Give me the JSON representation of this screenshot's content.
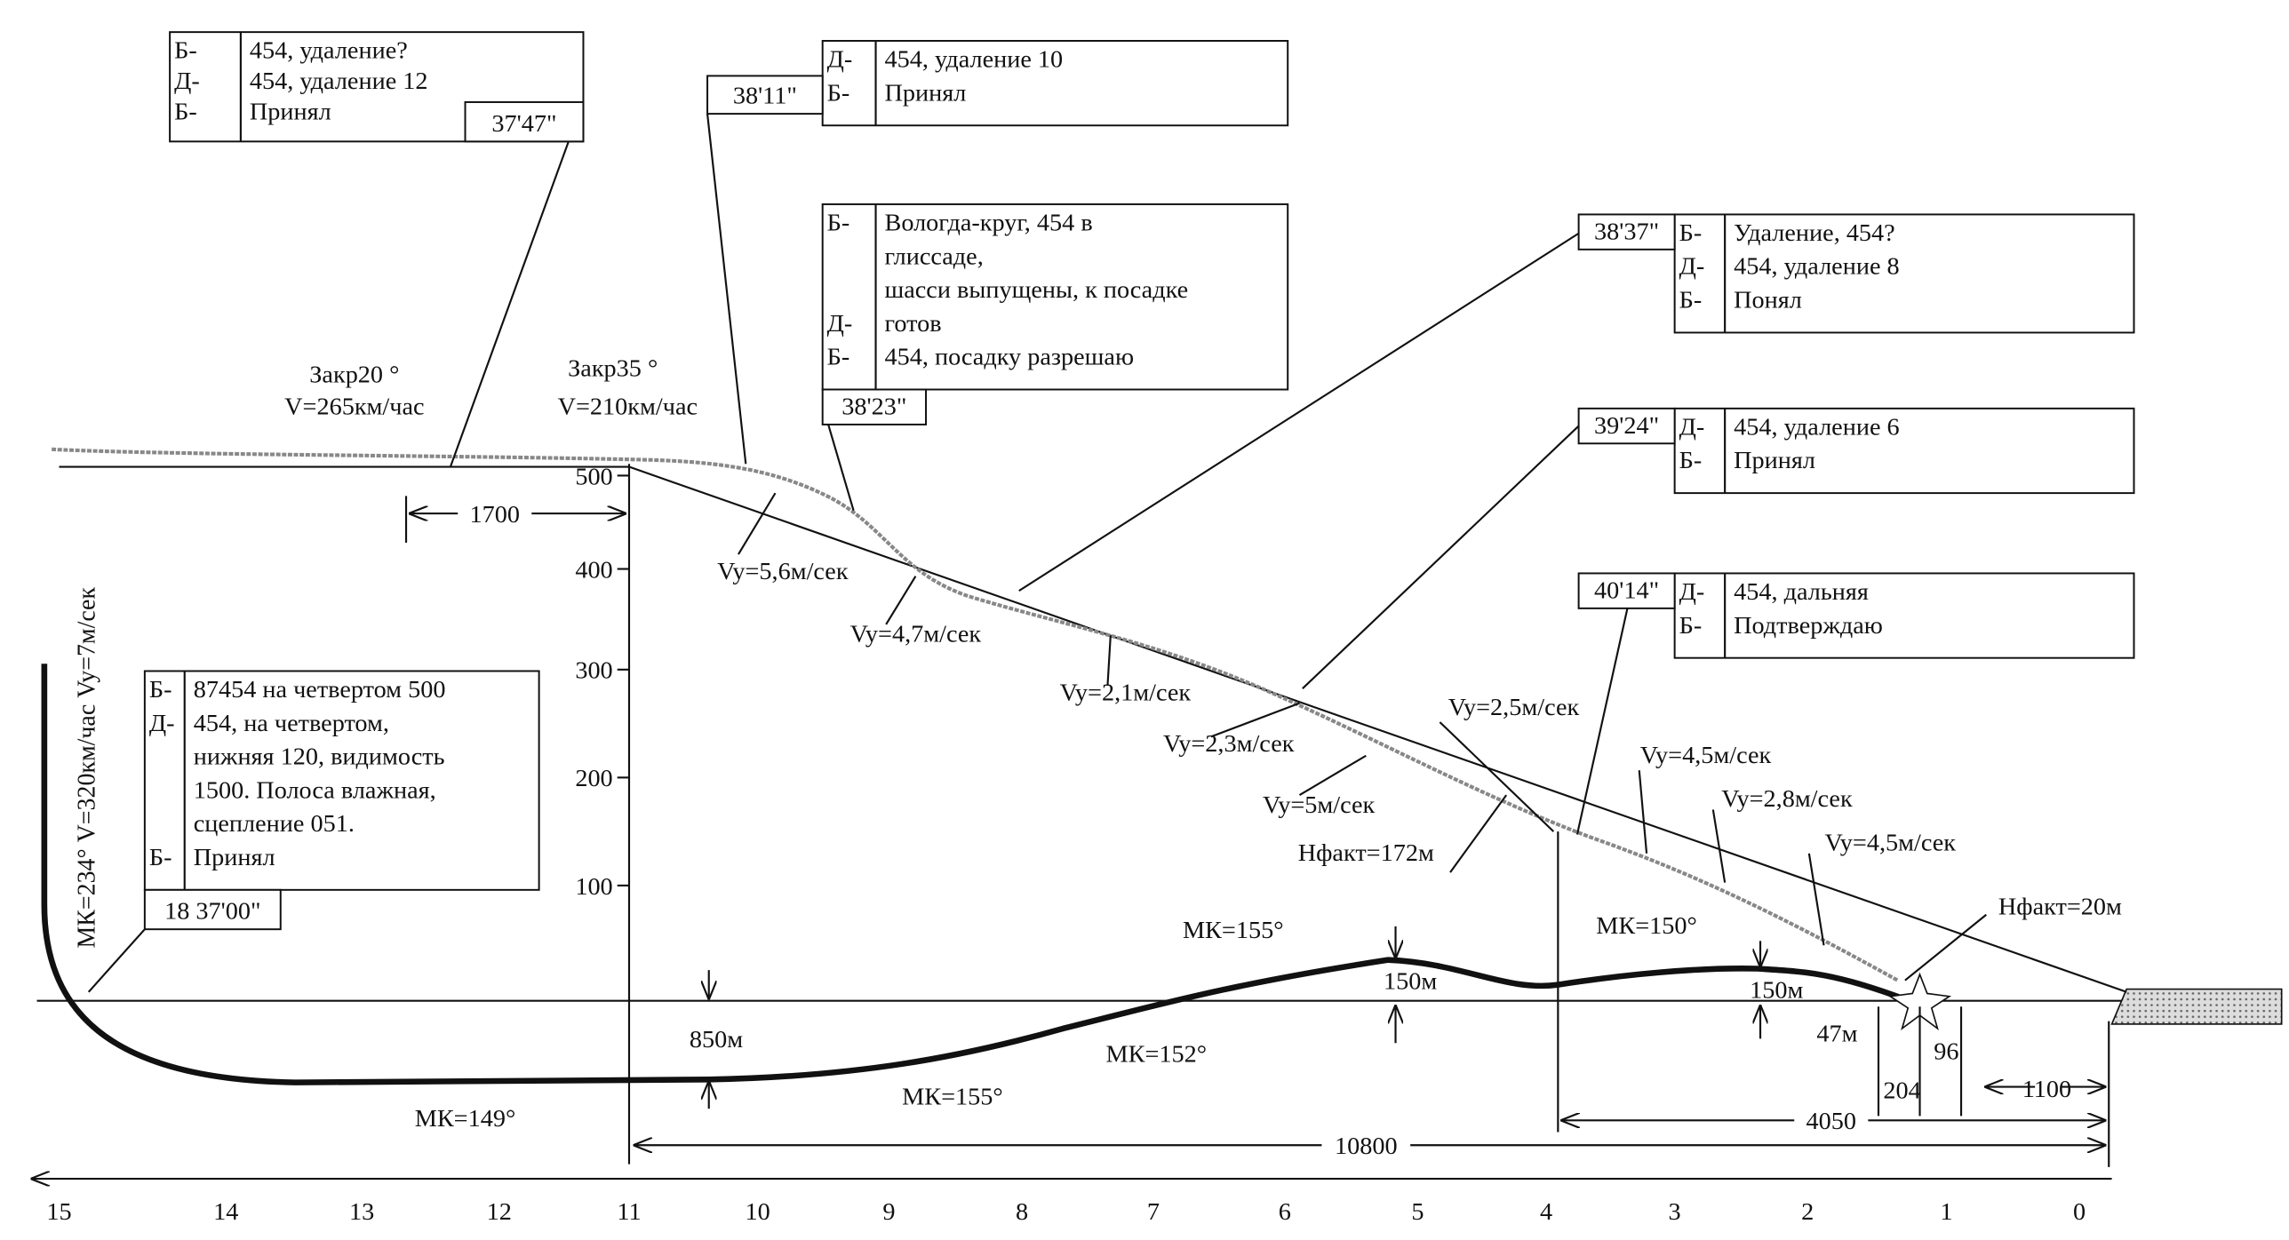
{
  "boxes": [
    {
      "time": "37'47\"",
      "rows": [
        {
          "speaker": "Б-",
          "lines": [
            "454, удаление?"
          ]
        },
        {
          "speaker": "Д-",
          "lines": [
            "454, удаление 12"
          ]
        },
        {
          "speaker": "Б-",
          "lines": [
            "Принял"
          ]
        }
      ]
    },
    {
      "time": "38'11\"",
      "rows": [
        {
          "speaker": "Д-",
          "lines": [
            "454, удаление 10"
          ]
        },
        {
          "speaker": "Б-",
          "lines": [
            "Принял"
          ]
        }
      ]
    },
    {
      "time": "38'23\"",
      "rows": [
        {
          "speaker": "Б-",
          "lines": [
            "Вологда-круг, 454 в",
            "глиссаде,",
            "шасси выпущены, к посадке"
          ]
        },
        {
          "speaker": "Д-",
          "lines": [
            "готов"
          ]
        },
        {
          "speaker": "Б-",
          "lines": [
            "454, посадку разрешаю"
          ]
        }
      ]
    },
    {
      "time": "38'37\"",
      "rows": [
        {
          "speaker": "Б-",
          "lines": [
            "Удаление, 454?"
          ]
        },
        {
          "speaker": "Д-",
          "lines": [
            "454, удаление 8"
          ]
        },
        {
          "speaker": "Б-",
          "lines": [
            "Понял"
          ]
        }
      ]
    },
    {
      "time": "39'24\"",
      "rows": [
        {
          "speaker": "Д-",
          "lines": [
            "454, удаление 6"
          ]
        },
        {
          "speaker": "Б-",
          "lines": [
            "Принял"
          ]
        }
      ]
    },
    {
      "time": "40'14\"",
      "rows": [
        {
          "speaker": "Д-",
          "lines": [
            "454, дальняя"
          ]
        },
        {
          "speaker": "Б-",
          "lines": [
            "Подтверждаю"
          ]
        }
      ]
    },
    {
      "time": "18 37'00\"",
      "rows": [
        {
          "speaker": "Б-",
          "lines": [
            "87454 на четвертом 500"
          ]
        },
        {
          "speaker": "Д-",
          "lines": [
            "454, на четвертом,",
            "нижняя 120, видимость",
            "1500. Полоса влажная,",
            "сцепление 051."
          ]
        },
        {
          "speaker": "Б-",
          "lines": [
            "Принял"
          ]
        }
      ]
    }
  ],
  "annotations": [
    "Закр20 °",
    "V=265км/час",
    "Закр35 °",
    "V=210км/час",
    "Vy=5,6м/сек",
    "Vy=4,7м/сек",
    "Vy=2,1м/сек",
    "Vy=2,3м/сек",
    "Vy=5м/сек",
    "Нфакт=172м",
    "Vy=2,5м/сек",
    "Vy=4,5м/сек",
    "Vy=2,8м/сек",
    "Vy=4,5м/сек",
    "Нфакт=20м",
    "МК=155°",
    "МК=150°",
    "МК=152°",
    "МК=155°",
    "МК=149°",
    "1700",
    "850м",
    "150м",
    "150м",
    "47м",
    "96",
    "204",
    "1100",
    "4050",
    "10800",
    "МК=234° V=320км/час Vy=7м/сек"
  ],
  "altitude_ticks": [
    500,
    400,
    300,
    200,
    100
  ],
  "distance_ticks": [
    15,
    14,
    13,
    12,
    11,
    10,
    9,
    8,
    7,
    6,
    5,
    4,
    3,
    2,
    1,
    0
  ]
}
